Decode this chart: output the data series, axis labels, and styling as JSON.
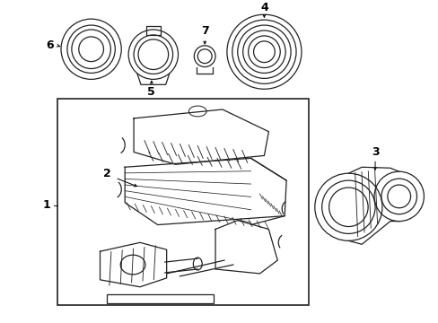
{
  "bg_color": "#ffffff",
  "line_color": "#222222",
  "label_color": "#000000",
  "fig_width": 4.89,
  "fig_height": 3.6,
  "dpi": 100
}
